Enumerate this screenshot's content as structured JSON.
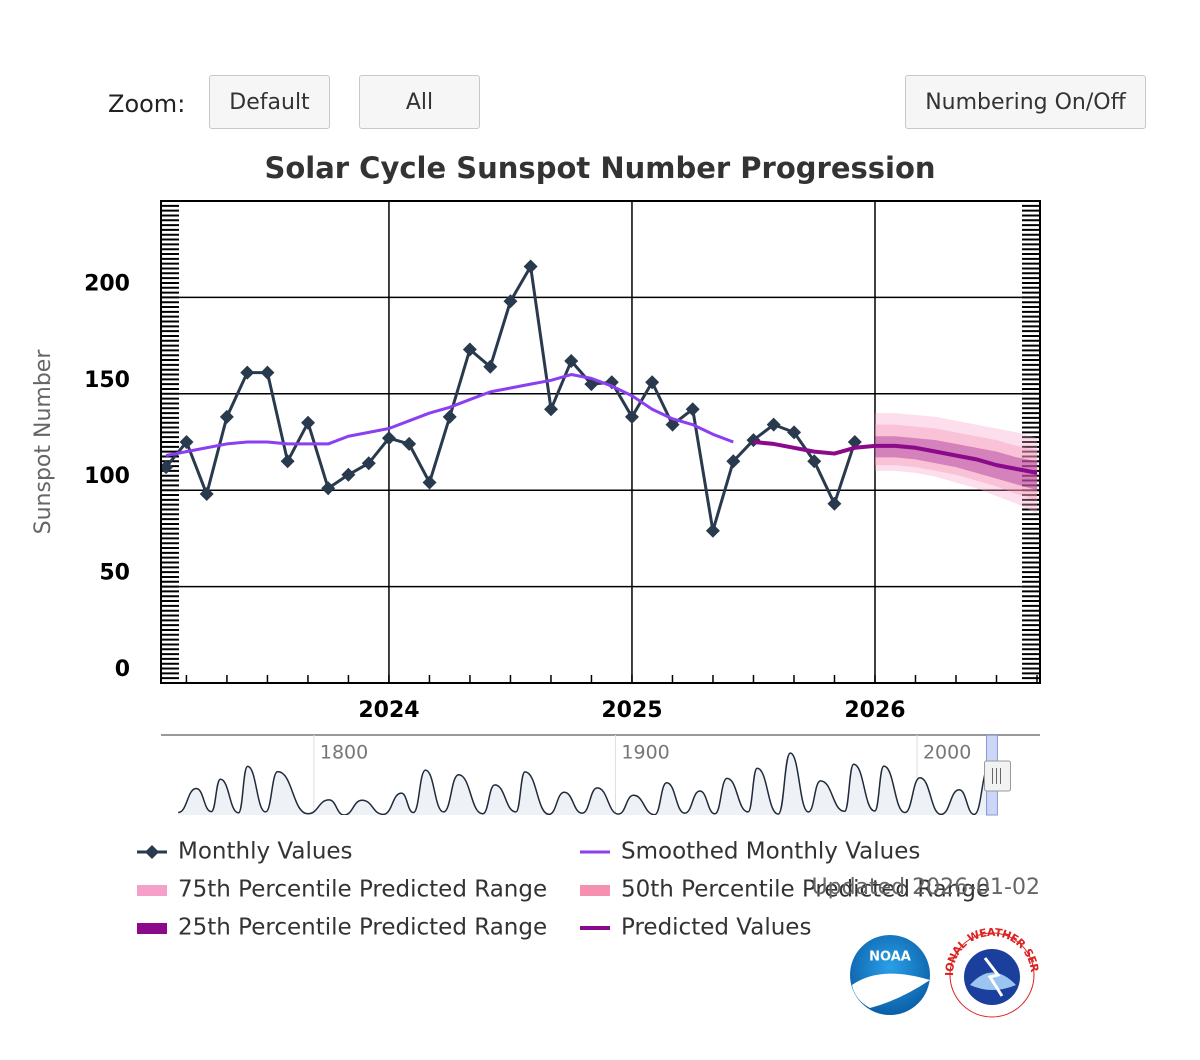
{
  "controls": {
    "zoom_label": "Zoom:",
    "buttons": [
      "Default",
      "All",
      "Numbering On/Off"
    ]
  },
  "chart_data": [
    {
      "type": "line",
      "title": "Solar Cycle Sunspot Number Progression",
      "ylabel": "Sunspot Number",
      "xlim": [
        2023.062,
        2026.679
      ],
      "ylim": [
        0,
        250
      ],
      "xticks": [
        2024,
        2025,
        2026
      ],
      "yticks": [
        0,
        50,
        100,
        150,
        200
      ],
      "grid": true,
      "series": [
        {
          "name": "Monthly Values",
          "color": "#2a3a4e",
          "marker": "diamond",
          "x": [
            2023.083,
            2023.167,
            2023.25,
            2023.333,
            2023.417,
            2023.5,
            2023.583,
            2023.667,
            2023.75,
            2023.833,
            2023.917,
            2024,
            2024.083,
            2024.167,
            2024.25,
            2024.333,
            2024.417,
            2024.5,
            2024.583,
            2024.667,
            2024.75,
            2024.833,
            2024.917,
            2025,
            2025.083,
            2025.167,
            2025.25,
            2025.333,
            2025.417,
            2025.5,
            2025.583,
            2025.667,
            2025.75,
            2025.833,
            2025.917
          ],
          "values": [
            112,
            125,
            98,
            138,
            161,
            161,
            115,
            135,
            101,
            108,
            114,
            127,
            124,
            104,
            138,
            173,
            164,
            198,
            216,
            142,
            167,
            155,
            156,
            138,
            156,
            134,
            142,
            79,
            115,
            126,
            134,
            130,
            115,
            93,
            125
          ]
        },
        {
          "name": "Smoothed Monthly Values",
          "color": "#8a3ff0",
          "x": [
            2023.083,
            2023.167,
            2023.25,
            2023.333,
            2023.417,
            2023.5,
            2023.583,
            2023.667,
            2023.75,
            2023.833,
            2023.917,
            2024,
            2024.083,
            2024.167,
            2024.25,
            2024.333,
            2024.417,
            2024.5,
            2024.583,
            2024.667,
            2024.75,
            2024.833,
            2024.917,
            2025,
            2025.083,
            2025.167,
            2025.25,
            2025.333,
            2025.417
          ],
          "values": [
            118,
            120,
            122,
            124,
            125,
            125,
            124,
            124,
            124,
            128,
            130,
            132,
            136,
            140,
            143,
            147,
            151,
            153,
            155,
            157,
            160,
            158,
            154,
            149,
            142,
            137,
            134,
            129,
            125
          ]
        },
        {
          "name": "75th Percentile Predicted Range",
          "color": "#f5a0c8",
          "band": true,
          "x": [
            2026,
            2026.083,
            2026.167,
            2026.25,
            2026.333,
            2026.417,
            2026.5,
            2026.583,
            2026.667
          ],
          "high": [
            140,
            140,
            139,
            138,
            136,
            134,
            132,
            130,
            127
          ],
          "low": [
            110,
            110,
            109,
            107,
            104,
            101,
            97,
            93,
            88
          ]
        },
        {
          "name": "50th Percentile Predicted Range",
          "color": "#f590b0",
          "band": true,
          "x": [
            2026,
            2026.083,
            2026.167,
            2026.25,
            2026.333,
            2026.417,
            2026.5,
            2026.583,
            2026.667
          ],
          "high": [
            134,
            134,
            133,
            132,
            130,
            128,
            126,
            123,
            121
          ],
          "low": [
            113,
            113,
            112,
            110,
            108,
            105,
            102,
            98,
            95
          ]
        },
        {
          "name": "25th Percentile Predicted Range",
          "color": "#8b0a8b",
          "band": true,
          "x": [
            2026,
            2026.083,
            2026.167,
            2026.25,
            2026.333,
            2026.417,
            2026.5,
            2026.583,
            2026.667
          ],
          "high": [
            128,
            128,
            127,
            126,
            124,
            122,
            120,
            117,
            115
          ],
          "low": [
            117,
            117,
            116,
            114,
            112,
            109,
            106,
            103,
            100
          ]
        },
        {
          "name": "Predicted Values",
          "color": "#8b0a8b",
          "thick": true,
          "x": [
            2025.5,
            2025.583,
            2025.667,
            2025.75,
            2025.833,
            2025.917,
            2026,
            2026.083,
            2026.167,
            2026.25,
            2026.333,
            2026.417,
            2026.5,
            2026.583,
            2026.667
          ],
          "values": [
            125,
            124,
            122,
            120,
            119,
            122,
            123,
            123,
            122,
            120,
            118,
            116,
            113,
            111,
            109
          ]
        }
      ]
    },
    {
      "type": "line",
      "xlim": [
        1749.3,
        2040.8
      ],
      "ylim": [
        0,
        260
      ],
      "xticks": [
        1800,
        1900,
        2000
      ],
      "color": "#1f2a3a",
      "x": [
        1755,
        1761,
        1766,
        1769,
        1775,
        1778,
        1784,
        1788,
        1798,
        1805,
        1810,
        1816,
        1823,
        1829,
        1833,
        1837,
        1843,
        1848,
        1856,
        1860,
        1867,
        1870,
        1878,
        1883,
        1889,
        1894,
        1901,
        1906,
        1913,
        1917,
        1923,
        1928,
        1933,
        1937,
        1944,
        1947,
        1954,
        1958,
        1964,
        1968,
        1976,
        1979,
        1986,
        1989,
        1996,
        2001,
        2008,
        2014,
        2019,
        2024
      ],
      "values": [
        8,
        86,
        11,
        116,
        7,
        158,
        10,
        141,
        4,
        49,
        0,
        48,
        2,
        71,
        8,
        146,
        10,
        131,
        4,
        98,
        10,
        140,
        2,
        74,
        6,
        88,
        3,
        64,
        1,
        105,
        6,
        78,
        4,
        119,
        10,
        152,
        3,
        201,
        10,
        111,
        12,
        165,
        13,
        159,
        8,
        121,
        2,
        82,
        2,
        157
      ]
    }
  ],
  "updated": "Updated 2026-01-02",
  "logos": {
    "noaa": "NOAA",
    "nws": "NATIONAL WEATHER SERVICE"
  }
}
